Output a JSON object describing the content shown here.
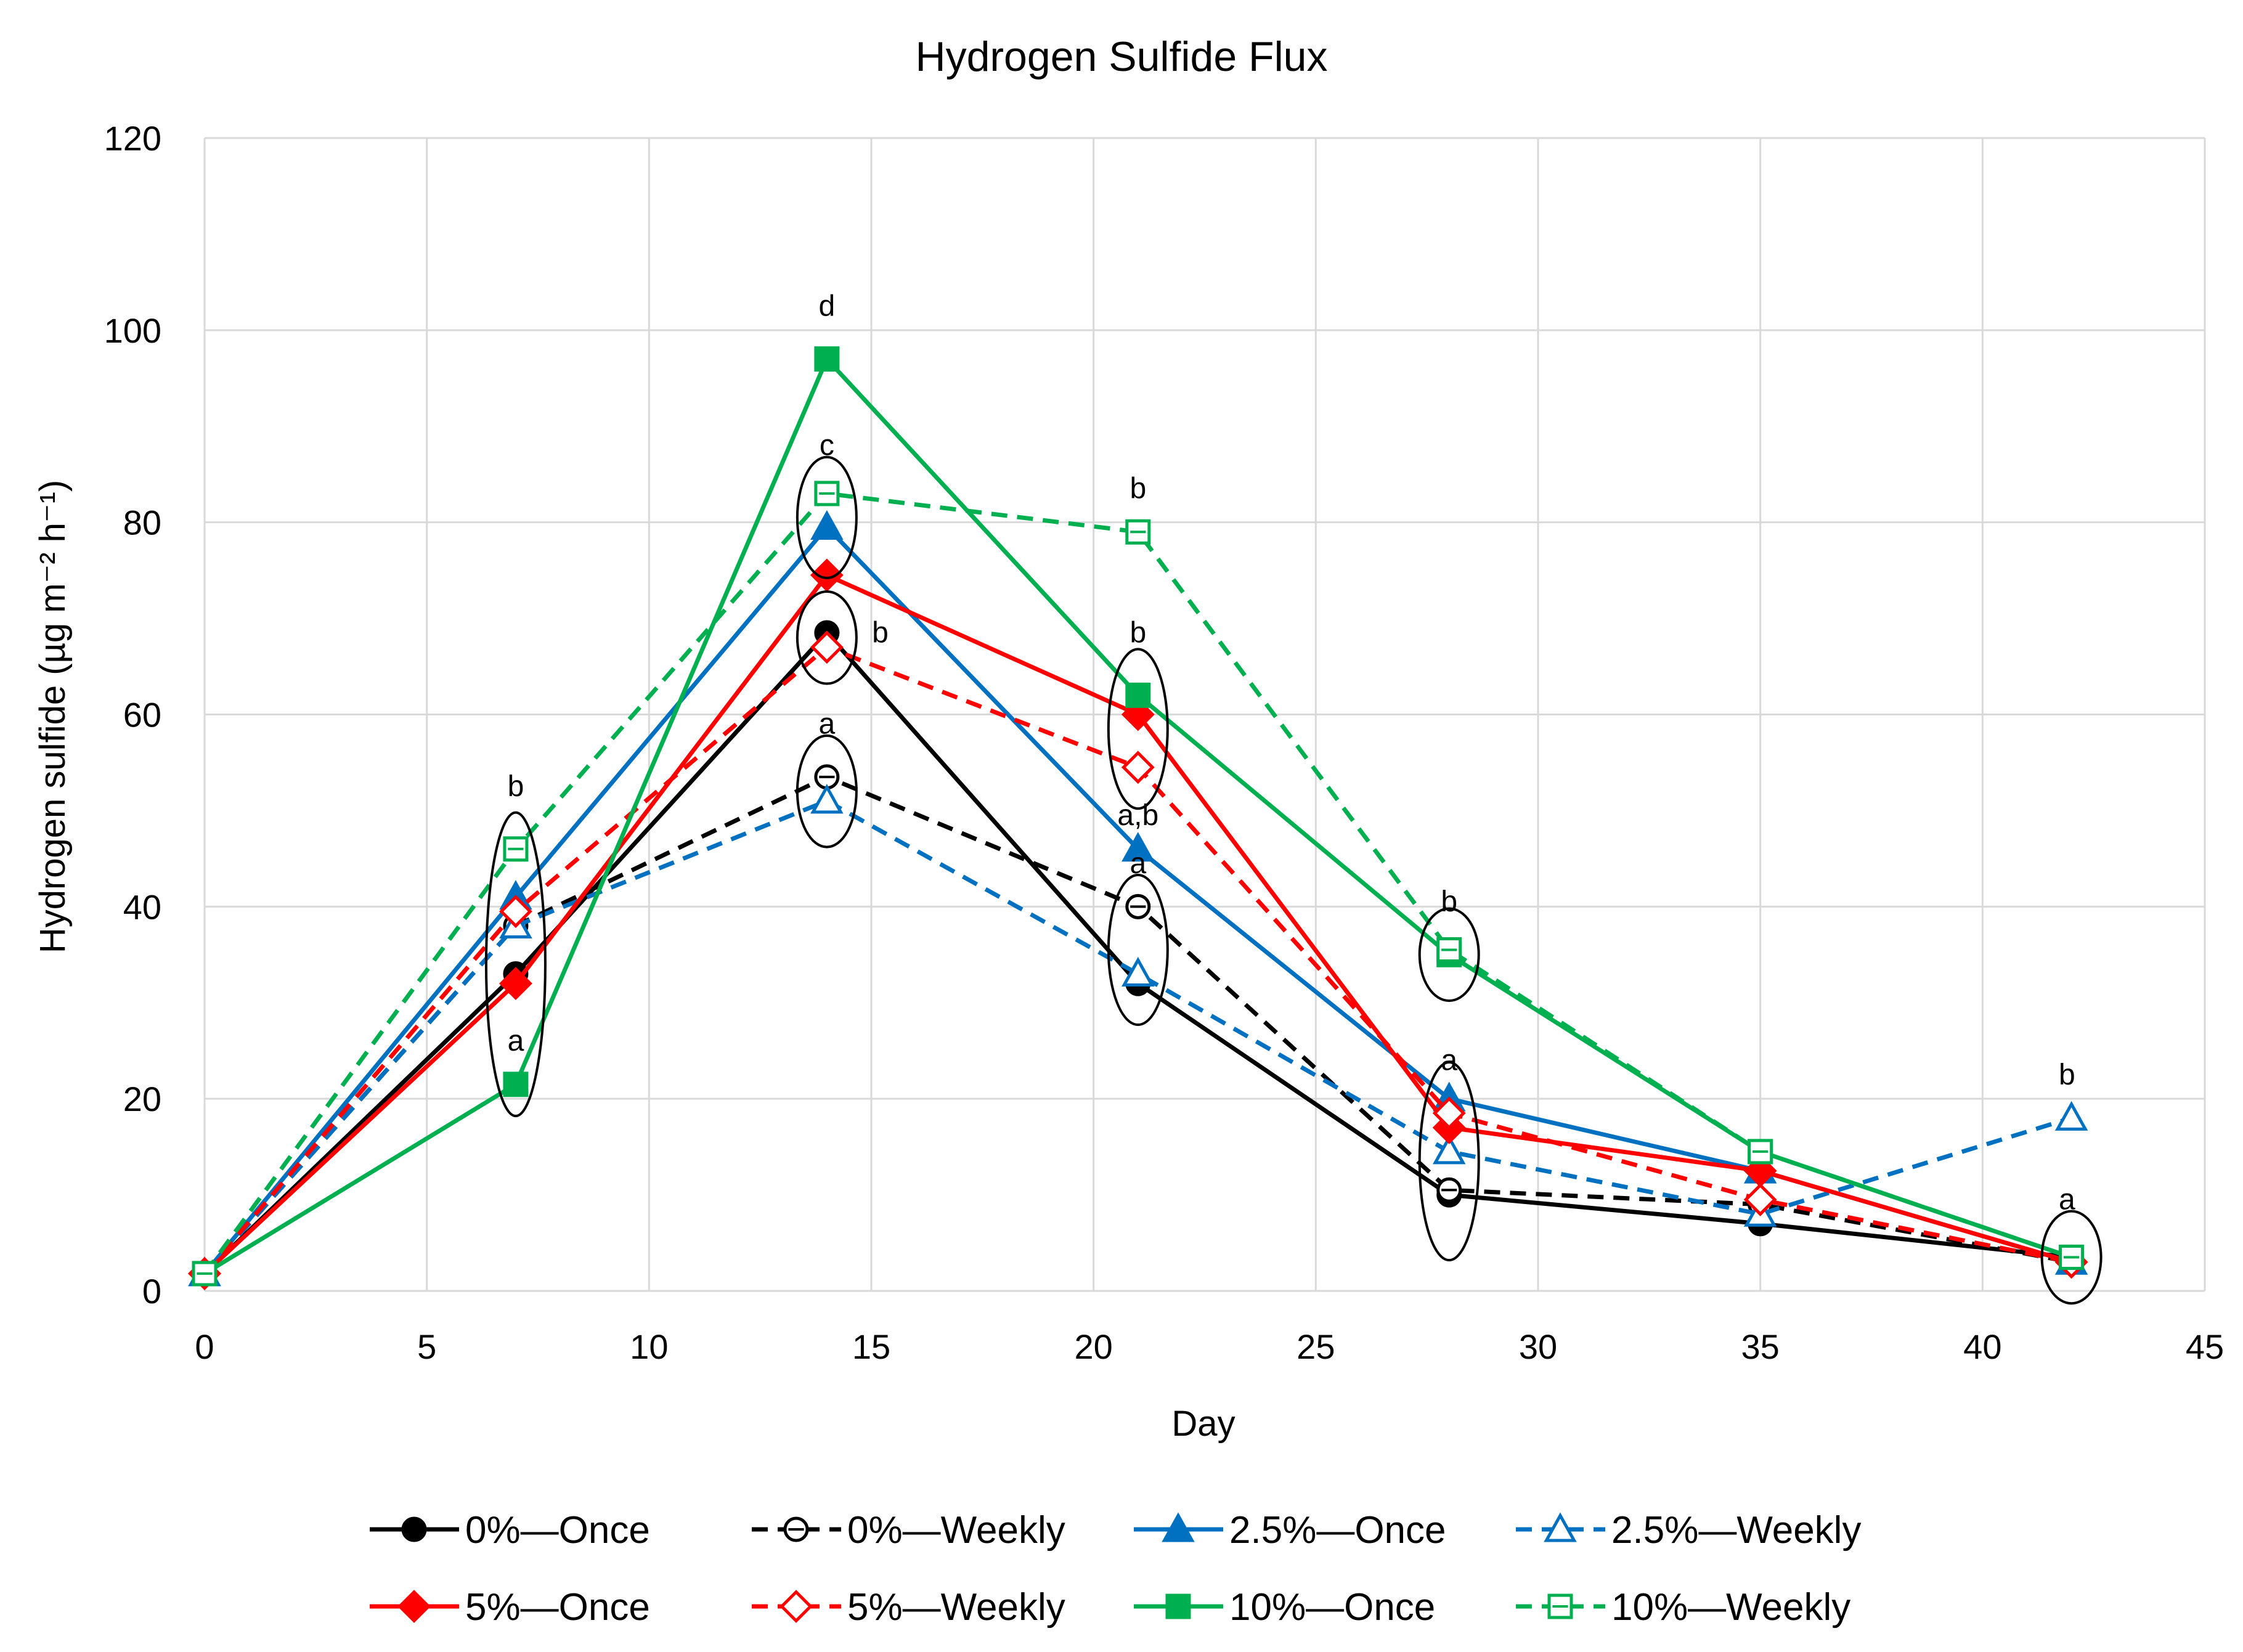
{
  "chart_data": {
    "type": "line",
    "title": "Hydrogen Sulfide Flux",
    "xlabel": "Day",
    "ylabel": "Hydrogen sulfide (µg m⁻² h⁻¹)",
    "xlim": [
      0,
      45
    ],
    "ylim": [
      0,
      120
    ],
    "xticks": [
      0,
      5,
      10,
      15,
      20,
      25,
      30,
      35,
      40,
      45
    ],
    "yticks": [
      0,
      20,
      40,
      60,
      80,
      100,
      120
    ],
    "grid": true,
    "legend_position": "bottom",
    "x": [
      0,
      7,
      14,
      21,
      28,
      35,
      42
    ],
    "series": [
      {
        "name": "0%—Once",
        "color": "#000000",
        "dash": false,
        "marker": "circle",
        "filled": true,
        "values": [
          1.8,
          33,
          68.5,
          32,
          10,
          7,
          3.5
        ]
      },
      {
        "name": "0%—Weekly",
        "color": "#000000",
        "dash": true,
        "marker": "circle",
        "filled": false,
        "values": [
          1.8,
          38,
          53.5,
          40,
          10.5,
          9,
          3
        ]
      },
      {
        "name": "2.5%—Once",
        "color": "#0070c0",
        "dash": false,
        "marker": "triangle",
        "filled": true,
        "values": [
          1.8,
          41,
          79.5,
          46,
          20,
          12.5,
          3
        ]
      },
      {
        "name": "2.5%—Weekly",
        "color": "#0070c0",
        "dash": true,
        "marker": "triangle",
        "filled": false,
        "values": [
          1.8,
          38,
          51,
          33,
          14.5,
          8,
          18
        ]
      },
      {
        "name": "5%—Once",
        "color": "#ff0000",
        "dash": false,
        "marker": "diamond",
        "filled": true,
        "values": [
          1.8,
          32,
          74.5,
          60,
          17,
          12.5,
          3
        ]
      },
      {
        "name": "5%—Weekly",
        "color": "#ff0000",
        "dash": true,
        "marker": "diamond",
        "filled": false,
        "values": [
          1.8,
          39.5,
          67,
          54.5,
          18.5,
          9.5,
          3
        ]
      },
      {
        "name": "10%—Once",
        "color": "#00b050",
        "dash": false,
        "marker": "square",
        "filled": true,
        "values": [
          1.8,
          21.5,
          97,
          62,
          35,
          14.5,
          3.5
        ]
      },
      {
        "name": "10%—Weekly",
        "color": "#00b050",
        "dash": true,
        "marker": "square",
        "filled": false,
        "values": [
          1.8,
          46,
          83,
          79,
          35.5,
          14.5,
          3.5
        ]
      }
    ],
    "annotations": [
      {
        "text": "b",
        "x": 7,
        "y": 51.5
      },
      {
        "text": "a",
        "x": 7,
        "y": 25
      },
      {
        "text": "d",
        "x": 14,
        "y": 101.5
      },
      {
        "text": "c",
        "x": 14,
        "y": 87
      },
      {
        "text": "b",
        "x": 15.2,
        "y": 67.5
      },
      {
        "text": "a",
        "x": 14,
        "y": 58
      },
      {
        "text": "b",
        "x": 21,
        "y": 82.5
      },
      {
        "text": "b",
        "x": 21,
        "y": 67.5
      },
      {
        "text": "a,b",
        "x": 21,
        "y": 48.5
      },
      {
        "text": "a",
        "x": 21,
        "y": 43.5
      },
      {
        "text": "b",
        "x": 28,
        "y": 39.5
      },
      {
        "text": "a",
        "x": 28,
        "y": 23
      },
      {
        "text": "b",
        "x": 41.9,
        "y": 21.5
      },
      {
        "text": "a",
        "x": 41.9,
        "y": 8.5
      }
    ],
    "group_ellipses": [
      {
        "x": 7,
        "y_min": 20,
        "y_max": 48
      },
      {
        "x": 14,
        "y_min": 76,
        "y_max": 85
      },
      {
        "x": 14,
        "y_min": 65,
        "y_max": 71
      },
      {
        "x": 14,
        "y_min": 48,
        "y_max": 56
      },
      {
        "x": 21,
        "y_min": 52,
        "y_max": 65
      },
      {
        "x": 21,
        "y_min": 29.5,
        "y_max": 41.5
      },
      {
        "x": 28,
        "y_min": 32,
        "y_max": 38
      },
      {
        "x": 28,
        "y_min": 5,
        "y_max": 22
      },
      {
        "x": 42,
        "y_min": 0.5,
        "y_max": 6.5
      }
    ]
  }
}
